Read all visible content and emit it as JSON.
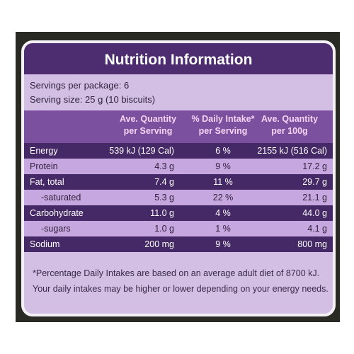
{
  "header": {
    "title": "Nutrition Information"
  },
  "servings": [
    "Servings per package: 6",
    "Serving size: 25 g (10 biscuits)"
  ],
  "table": {
    "columns": [
      [
        "Ave. Quantity",
        "per Serving"
      ],
      [
        "% Daily Intake*",
        "per Serving"
      ],
      [
        "Ave. Quantity",
        "per 100g"
      ]
    ],
    "rows": [
      [
        "Energy",
        "539 kJ (129 Cal)",
        "6 %",
        "2155 kJ (516 Cal)"
      ],
      [
        "Protein",
        "4.3 g",
        "9 %",
        "17.2 g"
      ],
      [
        "Fat, total",
        "7.4 g",
        "11 %",
        "29.7 g"
      ],
      [
        "-saturated",
        "5.3 g",
        "22 %",
        "21.1 g"
      ],
      [
        "Carbohydrate",
        "11.0 g",
        "4 %",
        "44.0 g"
      ],
      [
        "-sugars",
        "1.0 g",
        "1 %",
        "4.1 g"
      ],
      [
        "Sodium",
        "200 mg",
        "9 %",
        "800 mg"
      ]
    ]
  },
  "footer": [
    "*Percentage Daily Intakes are based on an average adult diet of 8700 kJ.",
    "Your daily intakes may be higher or lower depending on your energy needs."
  ]
}
